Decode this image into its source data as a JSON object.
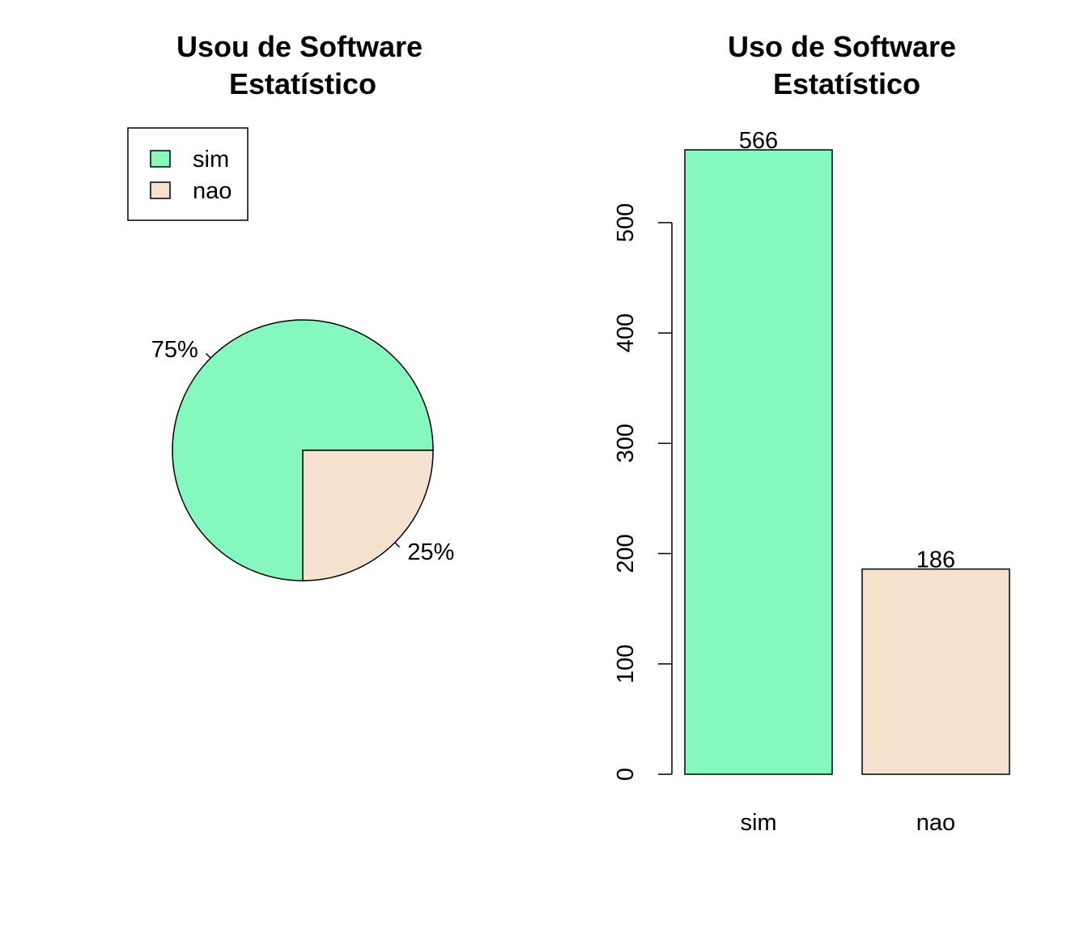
{
  "colors": {
    "sim": "#84F8BE",
    "nao": "#F5E2CE",
    "stroke": "#000000",
    "background": "#FFFFFF"
  },
  "chart_data": [
    {
      "type": "pie",
      "title": [
        "Usou de Software",
        "Estatístico"
      ],
      "categories": [
        "sim",
        "nao"
      ],
      "values": [
        75,
        25
      ],
      "slice_labels": [
        "75%",
        "25%"
      ],
      "legend": {
        "entries": [
          "sim",
          "nao"
        ],
        "position": "top-left"
      }
    },
    {
      "type": "bar",
      "title": [
        "Uso de Software",
        "Estatístico"
      ],
      "categories": [
        "sim",
        "nao"
      ],
      "values": [
        566,
        186
      ],
      "data_labels": [
        "566",
        "186"
      ],
      "xlabel": "",
      "ylabel": "",
      "ylim": [
        0,
        566
      ],
      "yticks": [
        0,
        100,
        200,
        300,
        400,
        500
      ],
      "grid": false
    }
  ]
}
